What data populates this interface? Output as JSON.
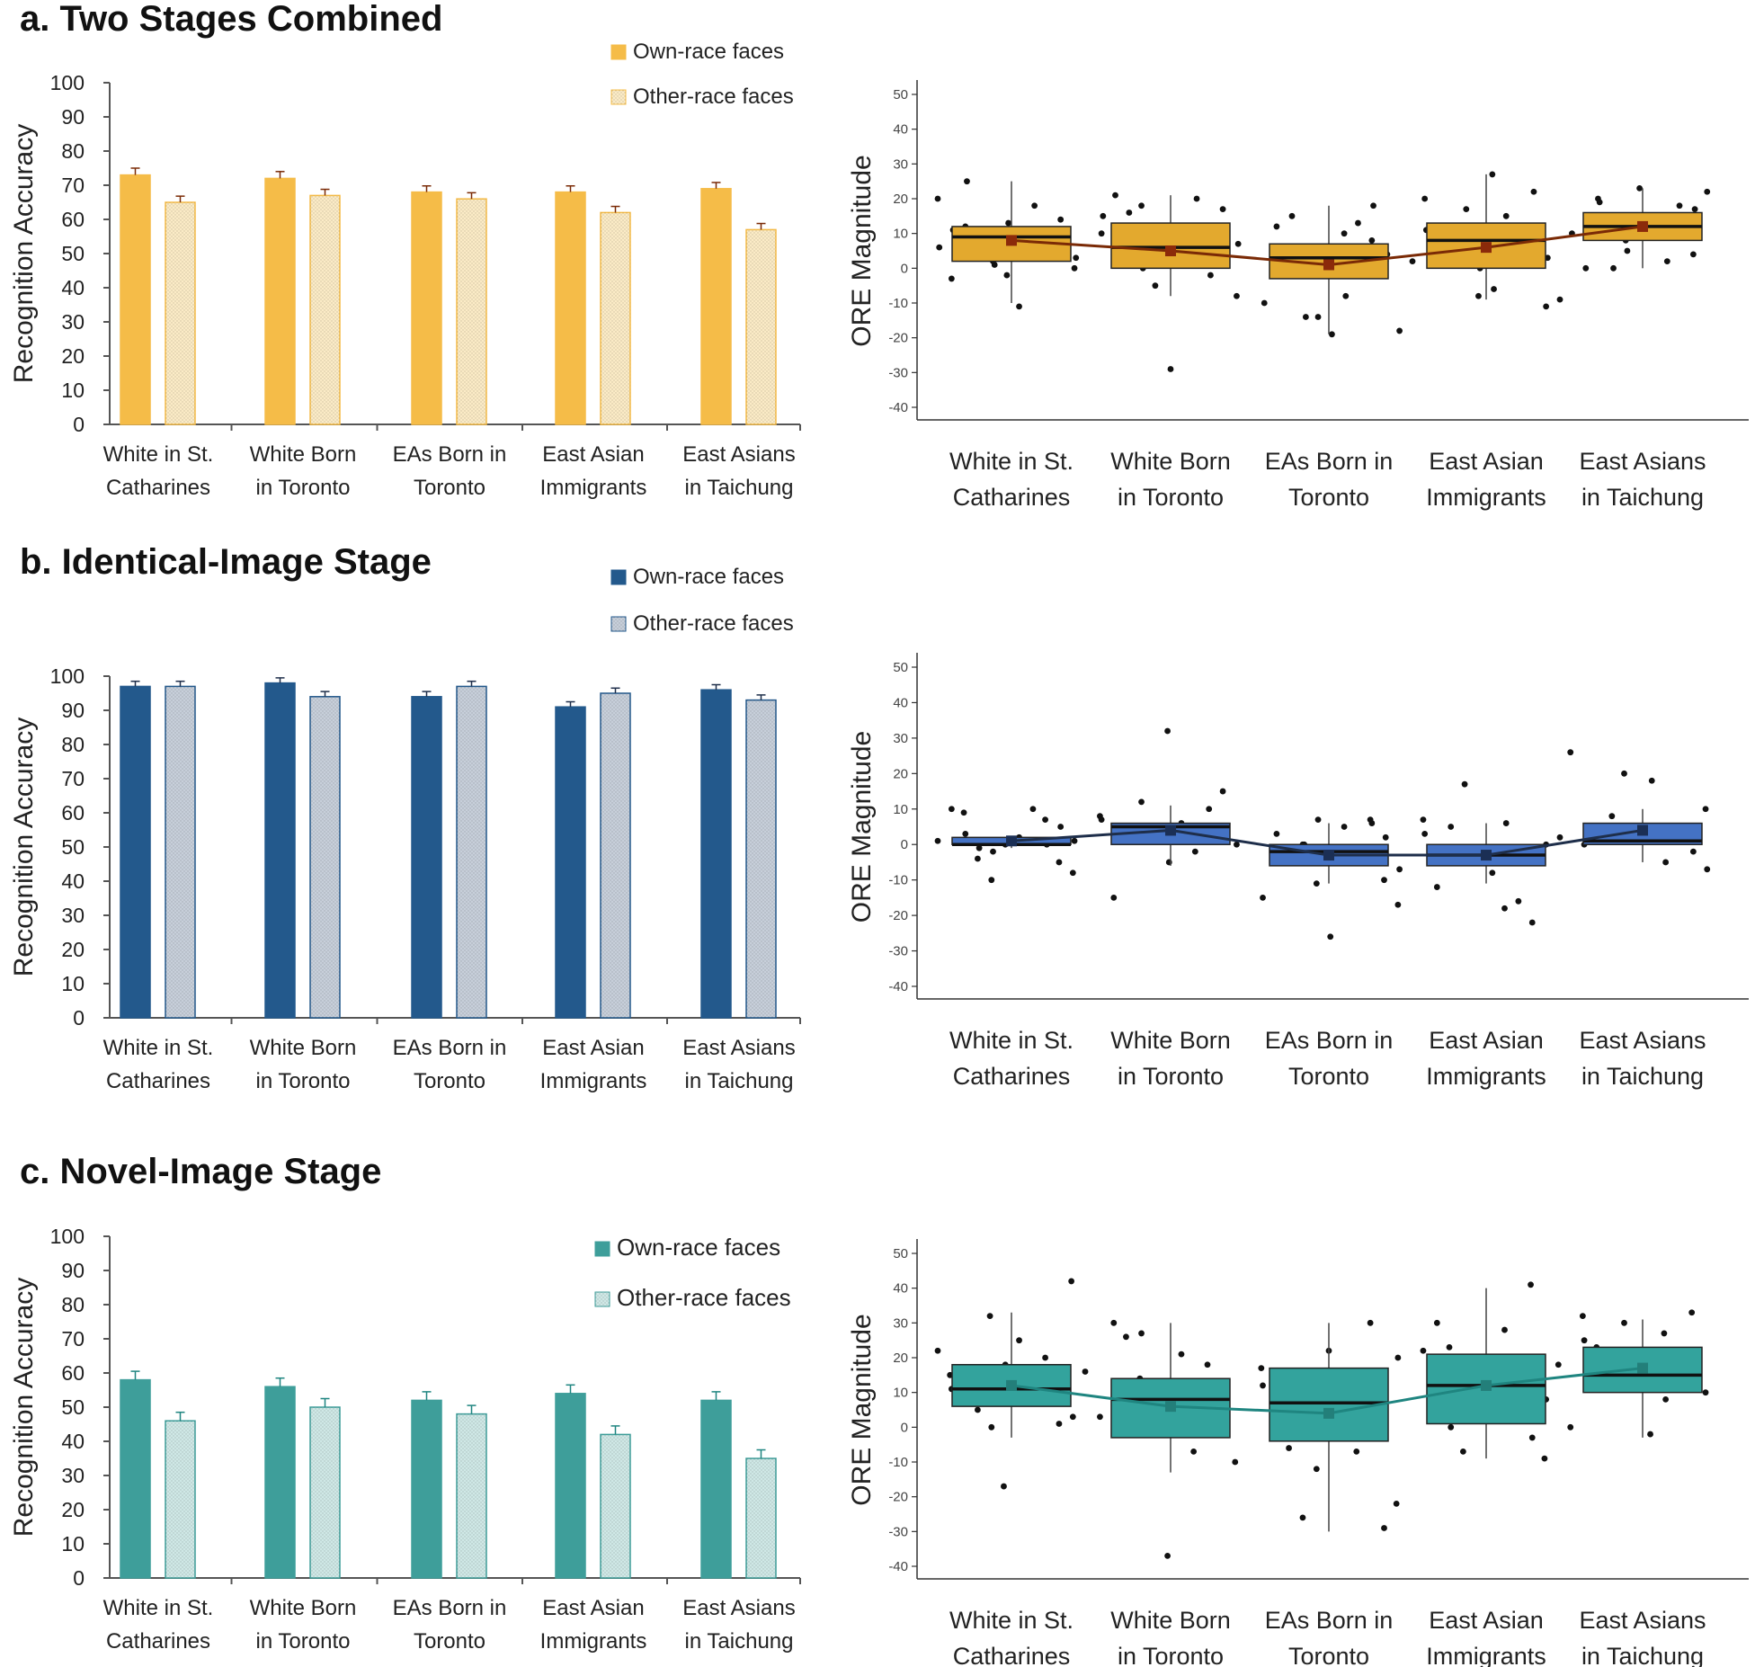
{
  "common": {
    "groups": [
      [
        "White in St.",
        "Catharines"
      ],
      [
        "White Born",
        "in Toronto"
      ],
      [
        "EAs Born in",
        "Toronto"
      ],
      [
        "East Asian",
        "Immigrants"
      ],
      [
        "East Asians",
        "in Taichung"
      ]
    ],
    "acc_ylabel": "Recognition Accuracy",
    "ore_ylabel": "ORE Magnitude",
    "legend_own": "Own-race faces",
    "legend_other": "Other-race faces",
    "acc_ticks": [
      "0",
      "10",
      "20",
      "30",
      "40",
      "50",
      "60",
      "70",
      "80",
      "90",
      "100"
    ],
    "ore_ticks": [
      "50",
      "40",
      "30",
      "20",
      "10",
      "0",
      "-10",
      "-20",
      "-30",
      "-40"
    ]
  },
  "panels": [
    {
      "title": "a. Two Stages Combined",
      "color_own": "#F5BC48",
      "color_other": "#FBEBC6",
      "color_box": "#E3A92E",
      "color_line": "#7A2A06",
      "color_mean": "#8B2A0A"
    },
    {
      "title": "b. Identical-Image Stage",
      "color_own": "#23598C",
      "color_other": "#C7CFDA",
      "color_box": "#4472C4",
      "color_line": "#1E2E4A",
      "color_mean": "#1B2F55"
    },
    {
      "title": "c. Novel-Image Stage",
      "color_own": "#3E9E9A",
      "color_other": "#CFE8E6",
      "color_box": "#33A39D",
      "color_line": "#1F8580",
      "color_mean": "#237F7A"
    }
  ],
  "chart_data": [
    {
      "type": "bar",
      "title": "a. Two Stages Combined",
      "ylabel": "Recognition Accuracy",
      "ylim": [
        0,
        100
      ],
      "categories": [
        "White in St. Catharines",
        "White Born in Toronto",
        "EAs Born in Toronto",
        "East Asian Immigrants",
        "East Asians in Taichung"
      ],
      "series": [
        {
          "name": "Own-race faces",
          "values": [
            73,
            72,
            68,
            68,
            69
          ],
          "errors": [
            2,
            2,
            1.8,
            1.8,
            1.8
          ]
        },
        {
          "name": "Other-race faces",
          "values": [
            65,
            67,
            66,
            62,
            57
          ],
          "errors": [
            1.8,
            1.8,
            1.8,
            1.8,
            1.8
          ]
        }
      ]
    },
    {
      "type": "box",
      "ylabel": "ORE Magnitude",
      "ylim": [
        -40,
        50
      ],
      "categories": [
        "White in St. Catharines",
        "White Born in Toronto",
        "EAs Born in Toronto",
        "East Asian Immigrants",
        "East Asians in Taichung"
      ],
      "boxes": [
        {
          "q1": 2,
          "median": 9,
          "q3": 12,
          "whisker_low": -10,
          "whisker_high": 25,
          "mean": 8
        },
        {
          "q1": 0,
          "median": 6,
          "q3": 13,
          "whisker_low": -8,
          "whisker_high": 21,
          "mean": 5
        },
        {
          "q1": -3,
          "median": 3,
          "q3": 7,
          "whisker_low": -19,
          "whisker_high": 18,
          "mean": 1
        },
        {
          "q1": 0,
          "median": 8,
          "q3": 13,
          "whisker_low": -9,
          "whisker_high": 27,
          "mean": 6
        },
        {
          "q1": 8,
          "median": 12,
          "q3": 16,
          "whisker_low": 0,
          "whisker_high": 23,
          "mean": 12
        }
      ],
      "points": [
        [
          20,
          -11,
          -3,
          5,
          12,
          8,
          10,
          14,
          2,
          0,
          -2,
          6,
          9,
          11,
          18,
          25,
          7,
          4,
          10,
          1,
          3,
          13
        ],
        [
          18,
          17,
          -5,
          -8,
          5,
          10,
          12,
          21,
          20,
          16,
          -2,
          0,
          9,
          3,
          7,
          -29,
          15
        ],
        [
          10,
          12,
          13,
          5,
          8,
          3,
          2,
          -14,
          -18,
          -19,
          -10,
          -8,
          1,
          0,
          15,
          18,
          -14,
          4
        ],
        [
          -11,
          -8,
          -9,
          27,
          20,
          15,
          5,
          9,
          12,
          22,
          17,
          3,
          0,
          2,
          -6,
          11
        ],
        [
          20,
          18,
          15,
          4,
          8,
          22,
          23,
          10,
          12,
          0,
          2,
          19,
          13,
          0,
          17,
          5
        ]
      ]
    },
    {
      "type": "bar",
      "title": "b. Identical-Image Stage",
      "ylabel": "Recognition Accuracy",
      "ylim": [
        0,
        100
      ],
      "categories": [
        "White in St. Catharines",
        "White Born in Toronto",
        "EAs Born in Toronto",
        "East Asian Immigrants",
        "East Asians in Taichung"
      ],
      "series": [
        {
          "name": "Own-race faces",
          "values": [
            97,
            98,
            94,
            91,
            96
          ],
          "errors": [
            1.5,
            1.5,
            1.5,
            1.5,
            1.5
          ]
        },
        {
          "name": "Other-race faces",
          "values": [
            97,
            94,
            97,
            95,
            93
          ],
          "errors": [
            1.5,
            1.5,
            1.5,
            1.5,
            1.5
          ]
        }
      ]
    },
    {
      "type": "box",
      "ylabel": "ORE Magnitude",
      "ylim": [
        -40,
        50
      ],
      "categories": [
        "White in St. Catharines",
        "White Born in Toronto",
        "EAs Born in Toronto",
        "East Asian Immigrants",
        "East Asians in Taichung"
      ],
      "boxes": [
        {
          "q1": 0,
          "median": 0,
          "q3": 2,
          "whisker_low": -1,
          "whisker_high": 2,
          "mean": 1
        },
        {
          "q1": 0,
          "median": 5,
          "q3": 6,
          "whisker_low": -6,
          "whisker_high": 11,
          "mean": 4
        },
        {
          "q1": -6,
          "median": -2,
          "q3": 0,
          "whisker_low": -11,
          "whisker_high": 6,
          "mean": -3
        },
        {
          "q1": -6,
          "median": -3,
          "q3": 0,
          "whisker_low": -11,
          "whisker_high": 6,
          "mean": -3
        },
        {
          "q1": 0,
          "median": 1,
          "q3": 6,
          "whisker_low": -5,
          "whisker_high": 10,
          "mean": 4
        }
      ],
      "points": [
        [
          9,
          7,
          -4,
          -5,
          -10,
          -8,
          0,
          1,
          2,
          10,
          10,
          3,
          0,
          -1,
          5,
          -2,
          1
        ],
        [
          32,
          8,
          6,
          -15,
          -2,
          3,
          10,
          12,
          15,
          5,
          0,
          -5,
          7,
          4,
          1
        ],
        [
          7,
          0,
          -10,
          -11,
          -17,
          -26,
          -15,
          5,
          3,
          -3,
          -5,
          6,
          0,
          2,
          7,
          -7
        ],
        [
          7,
          -18,
          -12,
          -16,
          5,
          -22,
          17,
          0,
          -5,
          2,
          -8,
          3,
          6
        ],
        [
          20,
          10,
          5,
          26,
          18,
          0,
          -5,
          2,
          3,
          8,
          -2,
          1,
          -7
        ]
      ]
    },
    {
      "type": "bar",
      "title": "c. Novel-Image Stage",
      "ylabel": "Recognition Accuracy",
      "ylim": [
        0,
        100
      ],
      "categories": [
        "White in St. Catharines",
        "White Born in Toronto",
        "EAs Born in Toronto",
        "East Asian Immigrants",
        "East Asians in Taichung"
      ],
      "series": [
        {
          "name": "Own-race faces",
          "values": [
            58,
            56,
            52,
            54,
            52
          ],
          "errors": [
            2.5,
            2.5,
            2.5,
            2.5,
            2.5
          ]
        },
        {
          "name": "Other-race faces",
          "values": [
            46,
            50,
            48,
            42,
            35
          ],
          "errors": [
            2.5,
            2.5,
            2.5,
            2.5,
            2.5
          ]
        }
      ]
    },
    {
      "type": "box",
      "ylabel": "ORE Magnitude",
      "ylim": [
        -40,
        50
      ],
      "categories": [
        "White in St. Catharines",
        "White Born in Toronto",
        "EAs Born in Toronto",
        "East Asian Immigrants",
        "East Asians in Taichung"
      ],
      "boxes": [
        {
          "q1": 6,
          "median": 11,
          "q3": 18,
          "whisker_low": -3,
          "whisker_high": 33,
          "mean": 12
        },
        {
          "q1": -3,
          "median": 8,
          "q3": 14,
          "whisker_low": -13,
          "whisker_high": 30,
          "mean": 6
        },
        {
          "q1": -4,
          "median": 7,
          "q3": 17,
          "whisker_low": -30,
          "whisker_high": 30,
          "mean": 4
        },
        {
          "q1": 1,
          "median": 12,
          "q3": 21,
          "whisker_low": -9,
          "whisker_high": 40,
          "mean": 12
        },
        {
          "q1": 10,
          "median": 15,
          "q3": 23,
          "whisker_low": -3,
          "whisker_high": 31,
          "mean": 17
        }
      ],
      "points": [
        [
          32,
          42,
          -17,
          16,
          10,
          15,
          8,
          12,
          20,
          5,
          1,
          0,
          3,
          18,
          22,
          25,
          11
        ],
        [
          -7,
          26,
          18,
          14,
          5,
          8,
          -10,
          -37,
          3,
          21,
          30,
          13,
          0,
          2,
          27
        ],
        [
          -22,
          22,
          17,
          10,
          15,
          -7,
          -6,
          30,
          -26,
          -29,
          -12,
          20,
          5,
          12
        ],
        [
          23,
          41,
          -7,
          -9,
          10,
          18,
          5,
          22,
          28,
          30,
          12,
          0,
          -3,
          16,
          8
        ],
        [
          -2,
          32,
          27,
          23,
          20,
          14,
          33,
          30,
          10,
          18,
          0,
          12,
          25,
          8
        ]
      ]
    }
  ]
}
